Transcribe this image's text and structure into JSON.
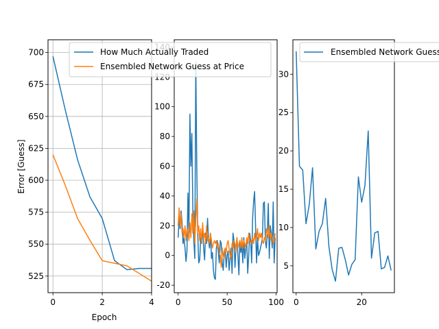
{
  "chart_data": [
    {
      "type": "line",
      "xlabel": "Epoch",
      "ylabel": "Error [Guess]",
      "xlim": [
        -0.2,
        4.0
      ],
      "ylim": [
        512,
        710
      ],
      "xticks": [
        0,
        2,
        4
      ],
      "yticks": [
        525,
        550,
        575,
        600,
        625,
        650,
        675,
        700
      ],
      "grid": true,
      "legend_position": "top-right",
      "series": [
        {
          "name": "How Much Actually Traded",
          "color": "#1f77b4",
          "x": [
            0,
            0.5,
            1,
            1.5,
            2,
            2.5,
            3,
            3.5,
            4
          ],
          "values": [
            697,
            655,
            616,
            587,
            570,
            537,
            530,
            531,
            531
          ]
        },
        {
          "name": "Ensembled Network Guess at Price",
          "color": "#ff7f0e",
          "x": [
            0,
            0.5,
            1,
            1.5,
            2,
            2.5,
            3,
            3.5,
            4
          ],
          "values": [
            620,
            596,
            570,
            553,
            537,
            535,
            533,
            527,
            521
          ]
        }
      ]
    },
    {
      "type": "line",
      "xlabel": "",
      "ylabel": "",
      "xlim": [
        -4,
        101
      ],
      "ylim": [
        -25,
        145
      ],
      "xticks": [
        0,
        50,
        100
      ],
      "yticks": [
        -20,
        0,
        20,
        40,
        60,
        80,
        100,
        120,
        140
      ],
      "grid": false,
      "series": [
        {
          "name": "",
          "color": "#1f77b4",
          "x": [
            0,
            1,
            2,
            3,
            4,
            5,
            6,
            7,
            8,
            9,
            10,
            11,
            12,
            13,
            14,
            15,
            16,
            17,
            18,
            19,
            20,
            21,
            22,
            23,
            24,
            25,
            26,
            27,
            28,
            29,
            30,
            31,
            32,
            33,
            34,
            35,
            36,
            37,
            38,
            39,
            40,
            41,
            42,
            43,
            44,
            45,
            46,
            47,
            48,
            49,
            50,
            51,
            52,
            53,
            54,
            55,
            56,
            57,
            58,
            59,
            60,
            61,
            62,
            63,
            64,
            65,
            66,
            67,
            68,
            69,
            70,
            71,
            72,
            73,
            74,
            75,
            76,
            77,
            78,
            79,
            80,
            81,
            82,
            83,
            84,
            85,
            86,
            87,
            88,
            89,
            90,
            91,
            92,
            93,
            94,
            95,
            96,
            97,
            98,
            99
          ],
          "values": [
            12,
            25,
            18,
            30,
            22,
            8,
            12,
            5,
            -4,
            3,
            42,
            15,
            95,
            60,
            82,
            30,
            10,
            -2,
            130,
            60,
            15,
            -5,
            -3,
            12,
            8,
            20,
            5,
            -3,
            15,
            8,
            25,
            10,
            5,
            15,
            -2,
            2,
            -10,
            -15,
            -16,
            5,
            10,
            2,
            -5,
            10,
            8,
            -5,
            -10,
            2,
            5,
            -8,
            0,
            3,
            -10,
            -2,
            5,
            -12,
            15,
            10,
            -8,
            5,
            12,
            0,
            -13,
            10,
            2,
            8,
            -5,
            12,
            -2,
            5,
            10,
            -12,
            0,
            15,
            10,
            -5,
            25,
            36,
            43,
            20,
            -5,
            12,
            0,
            2,
            5,
            8,
            12,
            35,
            36,
            10,
            5,
            15,
            35,
            -2,
            20,
            15,
            5,
            36,
            -5,
            12
          ]
        },
        {
          "name": "",
          "color": "#ff7f0e",
          "x": [
            0,
            1,
            2,
            3,
            4,
            5,
            6,
            7,
            8,
            9,
            10,
            11,
            12,
            13,
            14,
            15,
            16,
            17,
            18,
            19,
            20,
            21,
            22,
            23,
            24,
            25,
            26,
            27,
            28,
            29,
            30,
            31,
            32,
            33,
            34,
            35,
            36,
            37,
            38,
            39,
            40,
            41,
            42,
            43,
            44,
            45,
            46,
            47,
            48,
            49,
            50,
            51,
            52,
            53,
            54,
            55,
            56,
            57,
            58,
            59,
            60,
            61,
            62,
            63,
            64,
            65,
            66,
            67,
            68,
            69,
            70,
            71,
            72,
            73,
            74,
            75,
            76,
            77,
            78,
            79,
            80,
            81,
            82,
            83,
            84,
            85,
            86,
            87,
            88,
            89,
            90,
            91,
            92,
            93,
            94,
            95,
            96,
            97,
            98,
            99
          ],
          "values": [
            20,
            32,
            20,
            28,
            15,
            18,
            12,
            20,
            10,
            18,
            15,
            10,
            22,
            12,
            28,
            15,
            30,
            8,
            25,
            38,
            15,
            20,
            10,
            18,
            8,
            22,
            12,
            15,
            8,
            20,
            10,
            12,
            8,
            15,
            10,
            5,
            8,
            10,
            8,
            10,
            5,
            8,
            2,
            0,
            -8,
            5,
            0,
            -2,
            5,
            2,
            8,
            10,
            5,
            0,
            -2,
            8,
            5,
            10,
            8,
            2,
            12,
            5,
            8,
            10,
            5,
            12,
            5,
            10,
            8,
            5,
            12,
            8,
            15,
            10,
            8,
            10,
            12,
            8,
            15,
            10,
            12,
            18,
            10,
            15,
            12,
            15,
            10,
            8,
            12,
            10,
            18,
            15,
            12,
            20,
            10,
            15,
            12,
            8,
            10,
            15
          ]
        }
      ]
    },
    {
      "type": "line",
      "xlabel": "",
      "ylabel": "",
      "xlim": [
        -1,
        30
      ],
      "ylim": [
        1.5,
        34.5
      ],
      "xticks": [
        0,
        20
      ],
      "yticks": [
        5,
        10,
        15,
        20,
        25,
        30
      ],
      "grid": false,
      "legend_position": "top-right",
      "series": [
        {
          "name": "Ensembled Network Guess",
          "color": "#1f77b4",
          "x": [
            0,
            1,
            2,
            3,
            4,
            5,
            6,
            7,
            8,
            9,
            10,
            11,
            12,
            13,
            14,
            15,
            16,
            17,
            18,
            19,
            20,
            21,
            22,
            23,
            24,
            25,
            26,
            27,
            28,
            29
          ],
          "values": [
            33,
            18,
            17.5,
            10.5,
            13,
            17.8,
            7.2,
            9.5,
            10.5,
            13.8,
            7.5,
            4.5,
            3,
            7.3,
            7.4,
            5.8,
            3.8,
            5.2,
            5.8,
            16.6,
            13.3,
            15.5,
            22.6,
            6,
            9.3,
            9.5,
            4.6,
            4.8,
            6.3,
            4.4
          ]
        }
      ]
    }
  ]
}
